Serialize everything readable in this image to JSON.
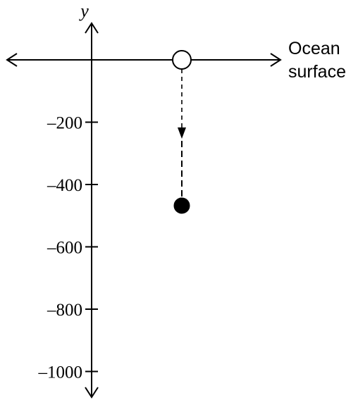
{
  "axes": {
    "y_label": "y",
    "ticks": [
      "–200",
      "–400",
      "–600",
      "–800",
      "–1000"
    ]
  },
  "surface_label": {
    "line1": "Ocean",
    "line2": "surface"
  },
  "diagram": {
    "start_depth": 0,
    "end_depth": -460,
    "start_marker": "open-circle",
    "end_marker": "filled-circle",
    "path_style": "dashed-arrow-down",
    "stroke_color": "#000000",
    "fill_color": "#000000",
    "background_color": "#ffffff"
  }
}
